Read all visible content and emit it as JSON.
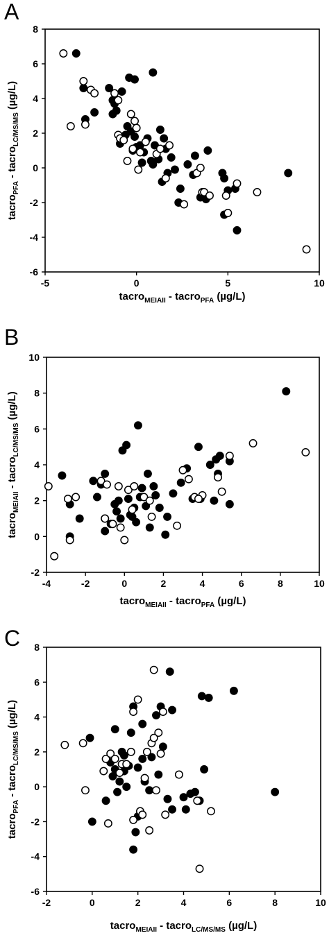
{
  "chart_data": [
    {
      "panel_label": "A",
      "type": "scatter",
      "xlabel": {
        "base": "tacro",
        "sub": "MEIAII",
        "mid": " - tacro",
        "sub2": "PFA",
        "unit": " (µg/L)"
      },
      "ylabel": {
        "base": "tacro",
        "sub": "PFA",
        "mid": " - tacro",
        "sub2": "LC/MS/MS",
        "unit": " (µg/L)"
      },
      "xlim": [
        -5,
        10
      ],
      "ylim": [
        -6,
        8
      ],
      "xticks": [
        -5,
        0,
        5,
        10
      ],
      "yticks": [
        -6,
        -4,
        -2,
        0,
        2,
        4,
        6,
        8
      ],
      "grid": false,
      "series": [
        {
          "marker": "filled",
          "points": [
            [
              -3.3,
              6.6
            ],
            [
              -2.9,
              4.6
            ],
            [
              -2.8,
              2.8
            ],
            [
              -2.3,
              3.2
            ],
            [
              -1.5,
              4.6
            ],
            [
              -1.3,
              3.9
            ],
            [
              -1.3,
              3.1
            ],
            [
              -1.2,
              3.7
            ],
            [
              -1.1,
              3.3
            ],
            [
              -0.9,
              1.4
            ],
            [
              -0.8,
              4.4
            ],
            [
              -0.4,
              5.2
            ],
            [
              -0.1,
              5.1
            ],
            [
              0.9,
              5.5
            ],
            [
              -0.6,
              1.9
            ],
            [
              -0.5,
              2.4
            ],
            [
              -0.3,
              2.1
            ],
            [
              -0.1,
              1.8
            ],
            [
              0,
              1.2
            ],
            [
              0.2,
              1.3
            ],
            [
              0.4,
              0.9
            ],
            [
              0.6,
              1.7
            ],
            [
              0.8,
              0.4
            ],
            [
              1.0,
              1.3
            ],
            [
              1.2,
              0.5
            ],
            [
              1.3,
              2.2
            ],
            [
              1.5,
              1.7
            ],
            [
              1.6,
              1.1
            ],
            [
              1.7,
              -0.3
            ],
            [
              1.9,
              0.6
            ],
            [
              1.4,
              -0.8
            ],
            [
              2.1,
              -0.1
            ],
            [
              2.3,
              -2.0
            ],
            [
              2.4,
              -1.2
            ],
            [
              2.8,
              0.2
            ],
            [
              3.1,
              -0.4
            ],
            [
              3.2,
              0.7
            ],
            [
              3.5,
              -1.7
            ],
            [
              3.8,
              -1.8
            ],
            [
              3.9,
              1.0
            ],
            [
              4.7,
              -0.3
            ],
            [
              4.8,
              -2.7
            ],
            [
              5.0,
              -1.3
            ],
            [
              5.4,
              -1.2
            ],
            [
              5.5,
              -3.6
            ],
            [
              8.3,
              -0.3
            ],
            [
              4.8,
              -0.6
            ],
            [
              0.3,
              0.3
            ],
            [
              0.9,
              0.2
            ],
            [
              -0.2,
              1.0
            ]
          ]
        },
        {
          "marker": "hollow",
          "points": [
            [
              -4.0,
              6.6
            ],
            [
              -3.6,
              2.4
            ],
            [
              -2.9,
              5.0
            ],
            [
              -2.5,
              4.5
            ],
            [
              -2.3,
              4.3
            ],
            [
              -2.8,
              2.5
            ],
            [
              -1.2,
              4.3
            ],
            [
              -1.0,
              3.9
            ],
            [
              -1.0,
              1.9
            ],
            [
              -0.9,
              1.7
            ],
            [
              -0.7,
              1.6
            ],
            [
              -0.3,
              3.1
            ],
            [
              -0.1,
              2.7
            ],
            [
              0,
              2.3
            ],
            [
              0.1,
              -0.1
            ],
            [
              -0.2,
              1.1
            ],
            [
              0.2,
              0.9
            ],
            [
              0.5,
              1.5
            ],
            [
              1.1,
              0.8
            ],
            [
              1.6,
              -0.6
            ],
            [
              1.8,
              1.3
            ],
            [
              2.6,
              -2.1
            ],
            [
              3.3,
              -0.3
            ],
            [
              3.5,
              0
            ],
            [
              3.6,
              -1.4
            ],
            [
              3.7,
              -1.4
            ],
            [
              4.0,
              -1.6
            ],
            [
              4.9,
              -1.6
            ],
            [
              5.0,
              -2.6
            ],
            [
              5.5,
              -0.9
            ],
            [
              6.6,
              -1.4
            ],
            [
              9.3,
              -4.7
            ],
            [
              -0.5,
              0.4
            ],
            [
              1.3,
              1.1
            ]
          ]
        }
      ]
    },
    {
      "panel_label": "B",
      "type": "scatter",
      "xlabel": {
        "base": "tacro",
        "sub": "MEIAII",
        "mid": " - tacro",
        "sub2": "PFA",
        "unit": " (µg/L)"
      },
      "ylabel": {
        "base": "tacro",
        "sub": "MEIAII",
        "mid": " - tacro",
        "sub2": "LC/MS/MS",
        "unit": " (µg/L)"
      },
      "xlim": [
        -4,
        10
      ],
      "ylim": [
        -2,
        10
      ],
      "xticks": [
        -4,
        -2,
        0,
        2,
        4,
        6,
        8,
        10
      ],
      "yticks": [
        -2,
        0,
        2,
        4,
        6,
        8,
        10
      ],
      "grid": false,
      "series": [
        {
          "marker": "filled",
          "points": [
            [
              -3.2,
              3.4
            ],
            [
              -2.8,
              1.8
            ],
            [
              -2.8,
              0
            ],
            [
              -2.3,
              1.0
            ],
            [
              -1.6,
              3.1
            ],
            [
              -1.4,
              2.2
            ],
            [
              -1.2,
              2.9
            ],
            [
              -1.0,
              3.5
            ],
            [
              -1.0,
              0.3
            ],
            [
              -0.7,
              0.7
            ],
            [
              -0.4,
              1.4
            ],
            [
              -0.3,
              2.0
            ],
            [
              -0.2,
              1.0
            ],
            [
              -0.1,
              4.8
            ],
            [
              0.1,
              5.1
            ],
            [
              0.2,
              2.1
            ],
            [
              0.3,
              1.2
            ],
            [
              0.5,
              1.6
            ],
            [
              0.6,
              0.8
            ],
            [
              0.7,
              6.2
            ],
            [
              0.9,
              2.7
            ],
            [
              1.1,
              1.7
            ],
            [
              1.2,
              3.5
            ],
            [
              1.3,
              0.5
            ],
            [
              1.6,
              2.3
            ],
            [
              1.8,
              1.6
            ],
            [
              2.1,
              0.1
            ],
            [
              2.2,
              1.1
            ],
            [
              2.5,
              2.4
            ],
            [
              2.9,
              3.0
            ],
            [
              3.2,
              3.8
            ],
            [
              3.5,
              2.1
            ],
            [
              3.8,
              5.0
            ],
            [
              3.9,
              2.1
            ],
            [
              4.4,
              4.0
            ],
            [
              4.7,
              4.3
            ],
            [
              4.8,
              3.5
            ],
            [
              4.9,
              4.5
            ],
            [
              5.4,
              1.8
            ],
            [
              5.4,
              4.2
            ],
            [
              8.3,
              8.1
            ],
            [
              0.8,
              2.2
            ],
            [
              1.5,
              2.8
            ],
            [
              -0.5,
              1.8
            ],
            [
              0.4,
              1.1
            ],
            [
              4.6,
              2.0
            ]
          ]
        },
        {
          "marker": "hollow",
          "points": [
            [
              -3.9,
              2.8
            ],
            [
              -3.6,
              -1.1
            ],
            [
              -2.9,
              2.1
            ],
            [
              -2.8,
              -0.2
            ],
            [
              -2.5,
              2.2
            ],
            [
              -1.2,
              3.1
            ],
            [
              -1.0,
              1.0
            ],
            [
              -0.9,
              2.9
            ],
            [
              -0.2,
              0.5
            ],
            [
              -0.3,
              2.8
            ],
            [
              0,
              -0.2
            ],
            [
              0.2,
              2.6
            ],
            [
              0.4,
              1.5
            ],
            [
              1.0,
              2.2
            ],
            [
              1.4,
              1.1
            ],
            [
              2.7,
              0.6
            ],
            [
              3.0,
              3.7
            ],
            [
              3.3,
              3.2
            ],
            [
              3.6,
              2.2
            ],
            [
              4.0,
              2.3
            ],
            [
              4.8,
              3.3
            ],
            [
              5.0,
              2.5
            ],
            [
              5.4,
              4.5
            ],
            [
              6.6,
              5.2
            ],
            [
              9.3,
              4.7
            ],
            [
              -1.0,
              1.0
            ],
            [
              0.5,
              2.8
            ],
            [
              1.3,
              2.0
            ],
            [
              -0.6,
              0.7
            ],
            [
              3.8,
              2.1
            ]
          ]
        }
      ]
    },
    {
      "panel_label": "C",
      "type": "scatter",
      "xlabel": {
        "base": "tacro",
        "sub": "MEIAII",
        "mid": " - tacro",
        "sub2": "LC/MS/MS",
        "unit": " (µg/L)"
      },
      "ylabel": {
        "base": "tacro",
        "sub": "PFA",
        "mid": " - tacro",
        "sub2": "LC/MS/MS",
        "unit": " (µg/L)"
      },
      "xlim": [
        -2,
        10
      ],
      "ylim": [
        -6,
        8
      ],
      "xticks": [
        -2,
        0,
        2,
        4,
        6,
        8,
        10
      ],
      "yticks": [
        -6,
        -4,
        -2,
        0,
        2,
        4,
        6,
        8
      ],
      "grid": false,
      "series": [
        {
          "marker": "filled",
          "points": [
            [
              -0.1,
              2.8
            ],
            [
              0,
              -2.0
            ],
            [
              0.6,
              -0.8
            ],
            [
              0.8,
              1.4
            ],
            [
              1.0,
              3.3
            ],
            [
              1.0,
              1.0
            ],
            [
              1.2,
              0.3
            ],
            [
              1.3,
              2.0
            ],
            [
              1.4,
              0.9
            ],
            [
              1.5,
              0
            ],
            [
              1.7,
              3.1
            ],
            [
              1.8,
              4.6
            ],
            [
              1.8,
              -3.6
            ],
            [
              1.9,
              -2.6
            ],
            [
              2.0,
              -1.7
            ],
            [
              2.0,
              1.1
            ],
            [
              2.2,
              3.6
            ],
            [
              2.3,
              0.3
            ],
            [
              2.5,
              -0.2
            ],
            [
              2.8,
              4.1
            ],
            [
              3.0,
              4.6
            ],
            [
              3.3,
              -0.7
            ],
            [
              3.4,
              6.6
            ],
            [
              3.5,
              4.4
            ],
            [
              3.5,
              -1.3
            ],
            [
              3.8,
              0.7
            ],
            [
              4.0,
              -0.6
            ],
            [
              4.1,
              -1.3
            ],
            [
              4.3,
              -0.4
            ],
            [
              4.5,
              -0.3
            ],
            [
              4.7,
              -0.8
            ],
            [
              4.8,
              5.2
            ],
            [
              5.1,
              5.1
            ],
            [
              4.9,
              1.0
            ],
            [
              6.2,
              5.5
            ],
            [
              8.0,
              -0.3
            ],
            [
              1.4,
              1.8
            ],
            [
              2.6,
              1.7
            ],
            [
              3.1,
              2.3
            ],
            [
              1.1,
              -0.3
            ],
            [
              2.2,
              1.6
            ],
            [
              1.6,
              1.2
            ],
            [
              0.9,
              0.6
            ],
            [
              2.9,
              0.7
            ]
          ]
        },
        {
          "marker": "hollow",
          "points": [
            [
              -1.2,
              2.4
            ],
            [
              -0.4,
              2.5
            ],
            [
              -0.3,
              -0.2
            ],
            [
              0.5,
              0.9
            ],
            [
              0.6,
              1.6
            ],
            [
              0.8,
              1.9
            ],
            [
              1.0,
              1.6
            ],
            [
              1.2,
              0.8
            ],
            [
              1.3,
              1.3
            ],
            [
              1.8,
              4.3
            ],
            [
              1.8,
              -1.9
            ],
            [
              2.0,
              5.0
            ],
            [
              2.1,
              -1.4
            ],
            [
              2.2,
              -1.6
            ],
            [
              2.4,
              2.0
            ],
            [
              2.5,
              -2.5
            ],
            [
              2.6,
              2.5
            ],
            [
              2.7,
              6.7
            ],
            [
              2.8,
              -0.2
            ],
            [
              2.9,
              3.1
            ],
            [
              3.1,
              4.3
            ],
            [
              3.2,
              -1.6
            ],
            [
              3.8,
              0.7
            ],
            [
              4.6,
              -0.8
            ],
            [
              4.7,
              -4.7
            ],
            [
              5.2,
              -1.4
            ],
            [
              0.7,
              -2.1
            ],
            [
              1.7,
              2.0
            ],
            [
              2.3,
              0.5
            ],
            [
              3.0,
              1.9
            ],
            [
              1.5,
              1.3
            ],
            [
              2.7,
              2.8
            ]
          ]
        }
      ]
    }
  ]
}
